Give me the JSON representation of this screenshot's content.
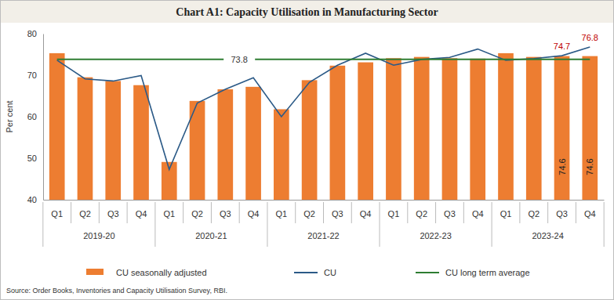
{
  "chart_data": {
    "type": "bar",
    "title": "Chart A1: Capacity Utilisation in Manufacturing Sector",
    "y_label": "Per cent",
    "categories": [
      "Q1",
      "Q2",
      "Q3",
      "Q4",
      "Q1",
      "Q2",
      "Q3",
      "Q4",
      "Q1",
      "Q2",
      "Q3",
      "Q4",
      "Q1",
      "Q2",
      "Q3",
      "Q4",
      "Q1",
      "Q2",
      "Q3",
      "Q4"
    ],
    "category_groups": [
      "2019-20",
      "2020-21",
      "2021-22",
      "2022-23",
      "2023-24"
    ],
    "ylim": [
      40,
      80
    ],
    "yticks": [
      40,
      50,
      60,
      70,
      80
    ],
    "grid": false,
    "legend": "bottom",
    "series": [
      {
        "name": "CU seasonally adjusted",
        "type": "bar",
        "color": "#ED7D31",
        "values": [
          75.3,
          69.5,
          68.6,
          67.6,
          49.1,
          63.8,
          66.6,
          67.2,
          61.8,
          68.8,
          72.3,
          73.1,
          74.1,
          74.4,
          74.1,
          74.0,
          75.3,
          74.4,
          74.6,
          74.6
        ],
        "value_labels": [
          null,
          null,
          null,
          null,
          null,
          null,
          null,
          null,
          null,
          null,
          null,
          null,
          null,
          null,
          null,
          null,
          null,
          null,
          "74.6",
          "74.6"
        ]
      },
      {
        "name": "CU",
        "type": "line",
        "color": "#2B5A87",
        "values": [
          73.6,
          69.1,
          68.6,
          69.9,
          47.3,
          63.3,
          66.6,
          69.4,
          60.0,
          68.3,
          72.4,
          75.3,
          72.4,
          73.8,
          74.3,
          76.3,
          73.6,
          74.0,
          74.7,
          76.8
        ],
        "value_labels": [
          null,
          null,
          null,
          null,
          null,
          null,
          null,
          null,
          null,
          null,
          null,
          null,
          null,
          null,
          null,
          null,
          null,
          null,
          "74.7",
          "76.8"
        ]
      },
      {
        "name": "CU long term average",
        "type": "line",
        "color": "#2E7D32",
        "values": [
          73.8,
          73.8,
          73.8,
          73.8,
          73.8,
          73.8,
          73.8,
          73.8,
          73.8,
          73.8,
          73.8,
          73.8,
          73.8,
          73.8,
          73.8,
          73.8,
          73.8,
          73.8,
          73.8,
          73.8
        ],
        "value_labels": [
          null,
          null,
          null,
          null,
          null,
          null,
          "73.8",
          null,
          null,
          null,
          null,
          null,
          null,
          null,
          null,
          null,
          null,
          null,
          null,
          null
        ]
      }
    ],
    "source": "Source: Order Books, Inventories and Capacity Utilisation Survey, RBI."
  }
}
